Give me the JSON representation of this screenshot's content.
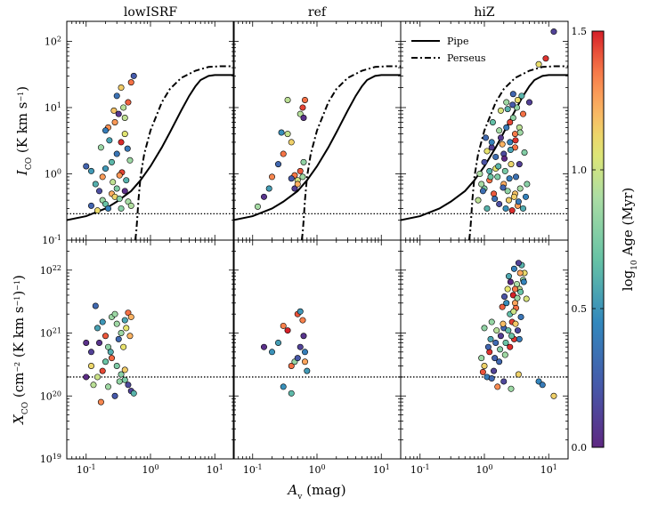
{
  "chart_data": {
    "type": "scatter",
    "panel_titles": [
      "lowISRF",
      "ref",
      "hiZ"
    ],
    "xlabel": "A_v (mag)",
    "xlim": [
      0.05,
      20
    ],
    "xscale": "log",
    "x_ticks": [
      "10^-1",
      "10^0",
      "10^1"
    ],
    "rows": [
      {
        "ylabel": "I_CO (K km s^-1)",
        "ylim": [
          0.1,
          200
        ],
        "yscale": "log",
        "y_ticks": [
          "10^-1",
          "10^0",
          "10^1",
          "10^2"
        ]
      },
      {
        "ylabel": "X_CO (cm^-2 (K km s^-1)^-1)",
        "ylim": [
          1e+19,
          3e+22
        ],
        "yscale": "log",
        "y_ticks": [
          "10^19",
          "10^20",
          "10^21",
          "10^22"
        ]
      }
    ],
    "legend": {
      "position": "top-left of hiZ panel",
      "entries": [
        {
          "label": "Pipe",
          "style": "solid"
        },
        {
          "label": "Perseus",
          "style": "dash-dot"
        }
      ]
    },
    "colorbar": {
      "label": "log10 Age (Myr)",
      "min": 0.0,
      "max": 1.5,
      "ticks": [
        "0.0",
        "0.5",
        "1.0",
        "1.5"
      ],
      "colormap": "spectral"
    },
    "reference_curves": {
      "Pipe": {
        "Av": [
          0.05,
          0.1,
          0.2,
          0.3,
          0.5,
          0.7,
          1,
          1.5,
          2,
          3,
          4,
          5,
          6,
          8,
          10,
          20
        ],
        "Ico": [
          0.2,
          0.23,
          0.3,
          0.38,
          0.55,
          0.8,
          1.3,
          2.5,
          4.2,
          9,
          15,
          21,
          26,
          30,
          31,
          31
        ]
      },
      "Perseus": {
        "Av": [
          0.58,
          0.6,
          0.62,
          0.65,
          0.7,
          0.8,
          1,
          1.5,
          2,
          3,
          5,
          8,
          12,
          20
        ],
        "Ico": [
          0.1,
          0.13,
          0.2,
          0.4,
          0.9,
          2.0,
          4.5,
          12,
          19,
          28,
          36,
          41,
          42,
          42
        ]
      },
      "Xco_reference": 2e+20,
      "Ico_floor": 0.25
    },
    "series": [
      {
        "name": "lowISRF",
        "Ico_points": [
          [
            0.12,
            0.33
          ],
          [
            0.15,
            0.28
          ],
          [
            0.18,
            0.4
          ],
          [
            0.2,
            0.35
          ],
          [
            0.22,
            0.3
          ],
          [
            0.25,
            0.5
          ],
          [
            0.28,
            0.45
          ],
          [
            0.3,
            0.6
          ],
          [
            0.33,
            0.42
          ],
          [
            0.35,
            0.3
          ],
          [
            0.4,
            0.55
          ],
          [
            0.45,
            0.38
          ],
          [
            0.5,
            0.33
          ],
          [
            0.14,
            0.7
          ],
          [
            0.18,
            0.9
          ],
          [
            0.2,
            1.2
          ],
          [
            0.25,
            1.5
          ],
          [
            0.3,
            2
          ],
          [
            0.35,
            3
          ],
          [
            0.4,
            4
          ],
          [
            0.22,
            5
          ],
          [
            0.28,
            6
          ],
          [
            0.32,
            8
          ],
          [
            0.38,
            10
          ],
          [
            0.45,
            12
          ],
          [
            0.3,
            15
          ],
          [
            0.35,
            20
          ],
          [
            0.55,
            30
          ],
          [
            0.5,
            24
          ],
          [
            0.1,
            1.3
          ],
          [
            0.12,
            1.1
          ],
          [
            0.17,
            2.5
          ],
          [
            0.23,
            3.2
          ],
          [
            0.42,
            0.8
          ],
          [
            0.48,
            1.6
          ],
          [
            0.16,
            0.55
          ],
          [
            0.26,
            0.75
          ],
          [
            0.36,
            1.05
          ],
          [
            0.44,
            2.4
          ],
          [
            0.2,
            4.5
          ],
          [
            0.27,
            9
          ],
          [
            0.33,
            0.95
          ],
          [
            0.4,
            7
          ]
        ],
        "Xco_points": [
          [
            0.1,
            7e+20
          ],
          [
            0.12,
            5e+20
          ],
          [
            0.15,
            1.2e+21
          ],
          [
            0.18,
            1.5e+21
          ],
          [
            0.2,
            9e+20
          ],
          [
            0.22,
            6e+20
          ],
          [
            0.25,
            1.8e+21
          ],
          [
            0.28,
            2e+21
          ],
          [
            0.3,
            1.4e+21
          ],
          [
            0.35,
            1e+21
          ],
          [
            0.4,
            1.6e+21
          ],
          [
            0.45,
            2.1e+21
          ],
          [
            0.5,
            1.8e+21
          ],
          [
            0.14,
            2.7e+21
          ],
          [
            0.12,
            3e+20
          ],
          [
            0.15,
            2e+20
          ],
          [
            0.18,
            2.5e+20
          ],
          [
            0.2,
            3.5e+20
          ],
          [
            0.25,
            4e+20
          ],
          [
            0.3,
            3e+20
          ],
          [
            0.35,
            2.2e+20
          ],
          [
            0.4,
            1.8e+20
          ],
          [
            0.45,
            1.5e+20
          ],
          [
            0.5,
            1.2e+20
          ],
          [
            0.55,
            1.1e+20
          ],
          [
            0.17,
            8e+19
          ],
          [
            0.22,
            1.4e+20
          ],
          [
            0.28,
            1e+20
          ],
          [
            0.33,
            1.7e+20
          ],
          [
            0.4,
            2.6e+20
          ],
          [
            0.1,
            2e+20
          ],
          [
            0.13,
            1.5e+20
          ],
          [
            0.16,
            7e+20
          ],
          [
            0.24,
            5e+20
          ],
          [
            0.32,
            8e+20
          ],
          [
            0.38,
            6e+20
          ],
          [
            0.42,
            1.2e+21
          ],
          [
            0.48,
            9e+20
          ]
        ]
      },
      {
        "name": "ref",
        "Ico_points": [
          [
            0.12,
            0.32
          ],
          [
            0.15,
            0.45
          ],
          [
            0.18,
            0.6
          ],
          [
            0.2,
            0.9
          ],
          [
            0.25,
            1.4
          ],
          [
            0.3,
            2
          ],
          [
            0.35,
            4
          ],
          [
            0.4,
            3
          ],
          [
            0.45,
            0.6
          ],
          [
            0.5,
            0.8
          ],
          [
            0.55,
            1.1
          ],
          [
            0.6,
            0.9
          ],
          [
            0.62,
            1.5
          ],
          [
            0.35,
            13
          ],
          [
            0.55,
            8
          ],
          [
            0.6,
            10
          ],
          [
            0.65,
            13
          ],
          [
            0.62,
            7
          ],
          [
            0.5,
            0.7
          ],
          [
            0.45,
            0.95
          ],
          [
            0.28,
            4.2
          ],
          [
            0.4,
            0.85
          ]
        ],
        "Xco_points": [
          [
            0.15,
            6e+20
          ],
          [
            0.2,
            5e+20
          ],
          [
            0.25,
            7e+20
          ],
          [
            0.3,
            1.3e+21
          ],
          [
            0.35,
            1.1e+21
          ],
          [
            0.4,
            3e+20
          ],
          [
            0.45,
            3.5e+20
          ],
          [
            0.5,
            2e+21
          ],
          [
            0.55,
            2.2e+21
          ],
          [
            0.6,
            1.6e+21
          ],
          [
            0.62,
            9e+20
          ],
          [
            0.65,
            5e+20
          ],
          [
            0.65,
            3.5e+20
          ],
          [
            0.7,
            2.5e+20
          ],
          [
            0.3,
            1.4e+20
          ],
          [
            0.4,
            1.1e+20
          ],
          [
            0.5,
            4e+20
          ],
          [
            0.55,
            6e+20
          ]
        ]
      },
      {
        "name": "hiZ",
        "Ico_points": [
          [
            0.8,
            0.4
          ],
          [
            1,
            0.6
          ],
          [
            1.2,
            0.8
          ],
          [
            1.5,
            1.2
          ],
          [
            2,
            2
          ],
          [
            2.5,
            3
          ],
          [
            3,
            4
          ],
          [
            3.5,
            5
          ],
          [
            4,
            8
          ],
          [
            5,
            12
          ],
          [
            1,
            1.5
          ],
          [
            1.3,
            2.5
          ],
          [
            1.8,
            3.5
          ],
          [
            2.2,
            5
          ],
          [
            2.8,
            7
          ],
          [
            3.2,
            10
          ],
          [
            3.8,
            15
          ],
          [
            1.1,
            0.3
          ],
          [
            1.4,
            0.5
          ],
          [
            1.7,
            0.35
          ],
          [
            2,
            0.7
          ],
          [
            2.4,
            0.4
          ],
          [
            2.7,
            0.28
          ],
          [
            3,
            0.5
          ],
          [
            3.3,
            0.33
          ],
          [
            3.6,
            0.6
          ],
          [
            4,
            0.3
          ],
          [
            1.6,
            0.9
          ],
          [
            2.1,
            1.1
          ],
          [
            2.6,
            1.4
          ],
          [
            3.1,
            0.9
          ],
          [
            0.9,
            0.7
          ],
          [
            1.2,
            1.1
          ],
          [
            1.5,
            1.8
          ],
          [
            1.9,
            2.8
          ],
          [
            2.3,
            0.55
          ],
          [
            2.9,
            0.45
          ],
          [
            3.4,
            0.38
          ],
          [
            1.3,
            3
          ],
          [
            1.7,
            4.5
          ],
          [
            2.5,
            6
          ],
          [
            3,
            2.5
          ],
          [
            7,
            45
          ],
          [
            12,
            140
          ],
          [
            9,
            55
          ],
          [
            2.2,
            12
          ],
          [
            2.8,
            16
          ],
          [
            1.1,
            2.2
          ],
          [
            1.45,
            0.42
          ],
          [
            1.95,
            0.62
          ],
          [
            2.45,
            0.85
          ],
          [
            3.5,
            1.4
          ],
          [
            4.2,
            2.1
          ],
          [
            0.95,
            0.55
          ],
          [
            1.25,
            0.9
          ],
          [
            1.65,
            1.3
          ],
          [
            2.05,
            1.7
          ],
          [
            2.55,
            2.3
          ],
          [
            3.05,
            3.2
          ],
          [
            3.6,
            4.2
          ],
          [
            1.05,
            3.5
          ],
          [
            1.35,
            6
          ],
          [
            1.8,
            9
          ],
          [
            2.3,
            9.5
          ],
          [
            2.75,
            11
          ],
          [
            3.3,
            13
          ],
          [
            0.85,
            1.0
          ],
          [
            4.4,
            0.45
          ],
          [
            4.6,
            0.7
          ],
          [
            2.15,
            0.3
          ]
        ],
        "Xco_points": [
          [
            1,
            3e+20
          ],
          [
            1.2,
            5e+20
          ],
          [
            1.5,
            7e+20
          ],
          [
            1.8,
            9e+20
          ],
          [
            2,
            1.2e+21
          ],
          [
            2.5,
            2e+21
          ],
          [
            3,
            3e+21
          ],
          [
            3.5,
            5e+21
          ],
          [
            4,
            7e+21
          ],
          [
            1.1,
            2e+20
          ],
          [
            1.4,
            2.5e+20
          ],
          [
            1.7,
            3.5e+20
          ],
          [
            2.1,
            4.5e+20
          ],
          [
            2.5,
            6e+20
          ],
          [
            2.9,
            8e+20
          ],
          [
            3.3,
            1.1e+21
          ],
          [
            3.7,
            1.8e+21
          ],
          [
            2.2,
            3e+21
          ],
          [
            2.8,
            4e+21
          ],
          [
            3.2,
            6e+21
          ],
          [
            3.8,
            1.2e+22
          ],
          [
            4.2,
            9e+21
          ],
          [
            2.4,
            8e+21
          ],
          [
            1.6,
            1.4e+20
          ],
          [
            2,
            1.7e+20
          ],
          [
            2.6,
            1.3e+20
          ],
          [
            3.4,
            2.2e+20
          ],
          [
            1,
            1.2e+21
          ],
          [
            1.3,
            1.5e+21
          ],
          [
            2.7,
            1.5e+21
          ],
          [
            3.1,
            2.5e+21
          ],
          [
            7,
            1.7e+20
          ],
          [
            12,
            1e+20
          ],
          [
            1.9,
            2.6e+21
          ],
          [
            2.3,
            5e+21
          ],
          [
            2.9,
            1.05e+22
          ],
          [
            3.4,
            1.3e+22
          ],
          [
            0.9,
            4e+20
          ],
          [
            1.25,
            8e+20
          ],
          [
            1.55,
            1.1e+21
          ],
          [
            1.95,
            1.4e+21
          ],
          [
            2.35,
            1.1e+21
          ],
          [
            2.85,
            2.2e+21
          ],
          [
            3.25,
            3.6e+21
          ],
          [
            3.65,
            4.5e+21
          ],
          [
            4.1,
            6.5e+21
          ],
          [
            4.5,
            3.5e+21
          ],
          [
            1.15,
            6e+20
          ],
          [
            1.45,
            4e+20
          ],
          [
            1.75,
            5.5e+20
          ],
          [
            2.15,
            7e+20
          ],
          [
            2.65,
            9e+20
          ],
          [
            3.05,
            1.4e+21
          ],
          [
            3.5,
            8e+20
          ],
          [
            0.95,
            2.4e+20
          ],
          [
            1.3,
            1.9e+20
          ],
          [
            8,
            1.5e+20
          ],
          [
            2.05,
            3.8e+21
          ],
          [
            2.55,
            6.5e+21
          ],
          [
            3.0,
            5e+21
          ],
          [
            3.6,
            9e+21
          ]
        ]
      }
    ]
  }
}
